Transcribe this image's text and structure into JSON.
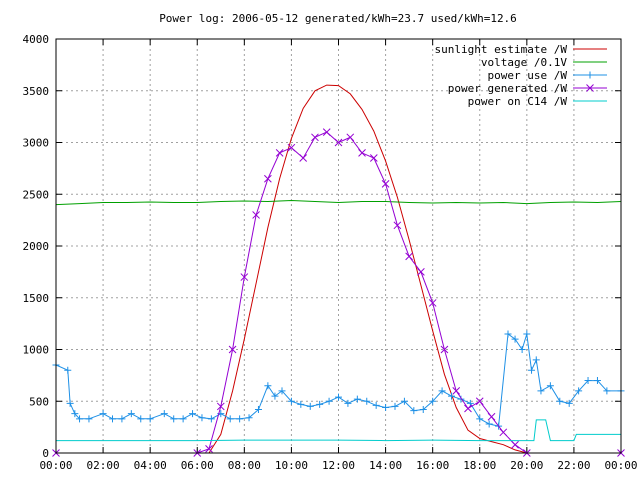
{
  "chart_data": {
    "type": "line",
    "title": "Power log: 2006-05-12 generated/kWh=23.7 used/kWh=12.6",
    "xlabel": "",
    "ylabel": "",
    "xlim": [
      0,
      24
    ],
    "ylim": [
      0,
      4000
    ],
    "x_ticks": [
      "00:00",
      "02:00",
      "04:00",
      "06:00",
      "08:00",
      "10:00",
      "12:00",
      "14:00",
      "16:00",
      "18:00",
      "20:00",
      "22:00",
      "00:00"
    ],
    "y_ticks": [
      "0",
      "500",
      "1000",
      "1500",
      "2000",
      "2500",
      "3000",
      "3500",
      "4000"
    ],
    "grid": true,
    "legend_position": "top-right",
    "series": [
      {
        "name": "sunlight estimate /W",
        "color": "#cc0000",
        "marker": "none",
        "x": [
          0,
          6.5,
          7,
          7.5,
          8,
          8.5,
          9,
          9.5,
          10,
          10.5,
          11,
          11.5,
          12,
          12.5,
          13,
          13.5,
          14,
          14.5,
          15,
          15.5,
          16,
          16.5,
          17,
          17.5,
          18,
          18.5,
          19,
          19.5,
          20,
          24
        ],
        "y": [
          0,
          0,
          180,
          600,
          1100,
          1640,
          2180,
          2650,
          3040,
          3330,
          3500,
          3555,
          3550,
          3470,
          3320,
          3110,
          2820,
          2470,
          2060,
          1620,
          1180,
          760,
          440,
          220,
          140,
          110,
          80,
          30,
          0,
          0
        ]
      },
      {
        "name": "voltage /0.1V",
        "color": "#00a000",
        "marker": "none",
        "x": [
          0,
          1,
          2,
          3,
          4,
          5,
          6,
          7,
          8,
          9,
          10,
          11,
          12,
          13,
          14,
          15,
          16,
          17,
          18,
          19,
          20,
          21,
          22,
          23,
          24
        ],
        "y": [
          2400,
          2410,
          2420,
          2420,
          2425,
          2420,
          2420,
          2430,
          2435,
          2430,
          2440,
          2430,
          2420,
          2430,
          2430,
          2420,
          2415,
          2420,
          2415,
          2420,
          2410,
          2420,
          2425,
          2420,
          2430
        ]
      },
      {
        "name": "power use /W",
        "color": "#1e90e6",
        "marker": "plus",
        "x": [
          0,
          0.5,
          0.6,
          0.8,
          1,
          1.4,
          2,
          2.4,
          2.8,
          3.2,
          3.6,
          4,
          4.6,
          5,
          5.4,
          5.8,
          6.2,
          6.6,
          7,
          7.4,
          7.8,
          8.2,
          8.6,
          9,
          9.3,
          9.6,
          10,
          10.4,
          10.8,
          11.2,
          11.6,
          12,
          12.4,
          12.8,
          13.2,
          13.6,
          14,
          14.4,
          14.8,
          15.2,
          15.6,
          16,
          16.4,
          16.8,
          17.2,
          17.6,
          18,
          18.4,
          18.8,
          19.2,
          19.5,
          19.8,
          20,
          20.2,
          20.4,
          20.6,
          21,
          21.4,
          21.8,
          22.2,
          22.6,
          23,
          23.4,
          24
        ],
        "y": [
          850,
          800,
          480,
          380,
          330,
          330,
          380,
          330,
          330,
          380,
          330,
          330,
          380,
          330,
          330,
          380,
          340,
          330,
          380,
          330,
          330,
          340,
          420,
          650,
          550,
          600,
          500,
          470,
          450,
          470,
          500,
          540,
          480,
          520,
          500,
          460,
          440,
          450,
          500,
          410,
          420,
          500,
          600,
          550,
          520,
          480,
          330,
          280,
          260,
          1150,
          1100,
          1000,
          1150,
          800,
          900,
          600,
          650,
          500,
          480,
          600,
          700,
          700,
          600,
          600
        ]
      },
      {
        "name": "power generated /W",
        "color": "#9400d3",
        "marker": "x",
        "x": [
          0,
          6,
          6.5,
          7,
          7.5,
          8,
          8.5,
          9,
          9.5,
          10,
          10.5,
          11,
          11.5,
          12,
          12.5,
          13,
          13.5,
          14,
          14.5,
          15,
          15.5,
          16,
          16.5,
          17,
          17.5,
          18,
          18.5,
          19,
          19.5,
          20,
          24
        ],
        "y": [
          0,
          0,
          40,
          450,
          1000,
          1700,
          2300,
          2650,
          2900,
          2950,
          2850,
          3050,
          3100,
          3000,
          3050,
          2900,
          2850,
          2600,
          2200,
          1900,
          1750,
          1450,
          1000,
          600,
          430,
          500,
          350,
          200,
          80,
          0,
          0
        ]
      },
      {
        "name": "power on C14 /W",
        "color": "#00cccc",
        "marker": "none",
        "x": [
          0,
          6,
          8,
          10,
          12,
          14,
          16,
          18,
          20,
          20.3,
          20.4,
          20.8,
          21,
          21.2,
          22,
          22.1,
          24
        ],
        "y": [
          120,
          120,
          125,
          125,
          125,
          120,
          125,
          120,
          120,
          120,
          320,
          320,
          120,
          120,
          120,
          180,
          180
        ]
      }
    ]
  }
}
